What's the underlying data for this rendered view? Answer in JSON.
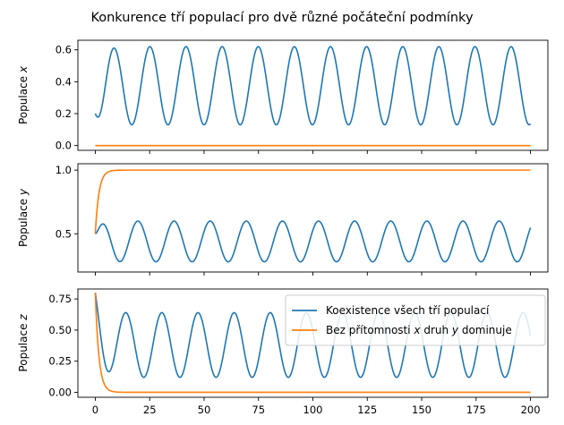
{
  "title": "Konkurence tří populací pro dvě různé počáteční podmínky",
  "colors": {
    "series1": "#1f77b4",
    "series2": "#ff7f0e"
  },
  "legend": {
    "placement": "upper-right of bottom panel",
    "entries": [
      "Koexistence všech tří populací",
      "Bez přítomnosti x druh y dominuje"
    ]
  },
  "chart_data": [
    {
      "type": "line",
      "ylabel": "Populace x",
      "xlim": [
        -8,
        208
      ],
      "ylim": [
        -0.03,
        0.66
      ],
      "xticks": [
        0,
        25,
        50,
        75,
        100,
        125,
        150,
        175,
        200
      ],
      "xtick_labels_visible": false,
      "yticks": [
        0.0,
        0.2,
        0.4,
        0.6
      ],
      "ytick_labels": [
        "0.0",
        "0.2",
        "0.4",
        "0.6"
      ],
      "series": [
        {
          "name": "Koexistence všech tří populací",
          "color": "#1f77b4",
          "oscillation": {
            "start": 0.2,
            "first_min": 0.15,
            "min": 0.13,
            "max": 0.62,
            "first_peak_t": 8.5,
            "period": 16.6
          },
          "end_value": 0.13
        },
        {
          "name": "Bez přítomnosti x druh y dominuje",
          "color": "#ff7f0e",
          "constant": 0.0
        }
      ]
    },
    {
      "type": "line",
      "ylabel": "Populace y",
      "xlim": [
        -8,
        208
      ],
      "ylim": [
        0.2,
        1.05
      ],
      "xticks": [
        0,
        25,
        50,
        75,
        100,
        125,
        150,
        175,
        200
      ],
      "xtick_labels_visible": false,
      "yticks": [
        0.5,
        1.0
      ],
      "ytick_labels": [
        "0.5",
        "1.0"
      ],
      "series": [
        {
          "name": "Koexistence všech tří populací",
          "color": "#1f77b4",
          "oscillation": {
            "start": 0.5,
            "min": 0.28,
            "max": 0.6,
            "first_peak_t": 3.0,
            "period": 16.6
          },
          "end_value": 0.49
        },
        {
          "name": "Bez přítomnosti x druh y dominuje",
          "color": "#ff7f0e",
          "saturation": {
            "start": 0.5,
            "end": 1.0,
            "rate": 0.6
          }
        }
      ]
    },
    {
      "type": "line",
      "ylabel": "Populace z",
      "xlim": [
        -8,
        208
      ],
      "ylim": [
        -0.04,
        0.83
      ],
      "xticks": [
        0,
        25,
        50,
        75,
        100,
        125,
        150,
        175,
        200
      ],
      "xtick_labels": [
        "0",
        "25",
        "50",
        "75",
        "100",
        "125",
        "150",
        "175",
        "200"
      ],
      "yticks": [
        0.0,
        0.25,
        0.5,
        0.75
      ],
      "ytick_labels": [
        "0.00",
        "0.25",
        "0.50",
        "0.75"
      ],
      "series": [
        {
          "name": "Koexistence všech tří populací",
          "color": "#1f77b4",
          "oscillation": {
            "start": 0.8,
            "min": 0.12,
            "max": 0.64,
            "first_peak_t": 14.0,
            "period": 16.6
          },
          "end_value": 0.38
        },
        {
          "name": "Bez přítomnosti x druh y dominuje",
          "color": "#ff7f0e",
          "decay": {
            "start": 0.8,
            "end": 0.0,
            "rate": 0.6
          }
        }
      ]
    }
  ]
}
